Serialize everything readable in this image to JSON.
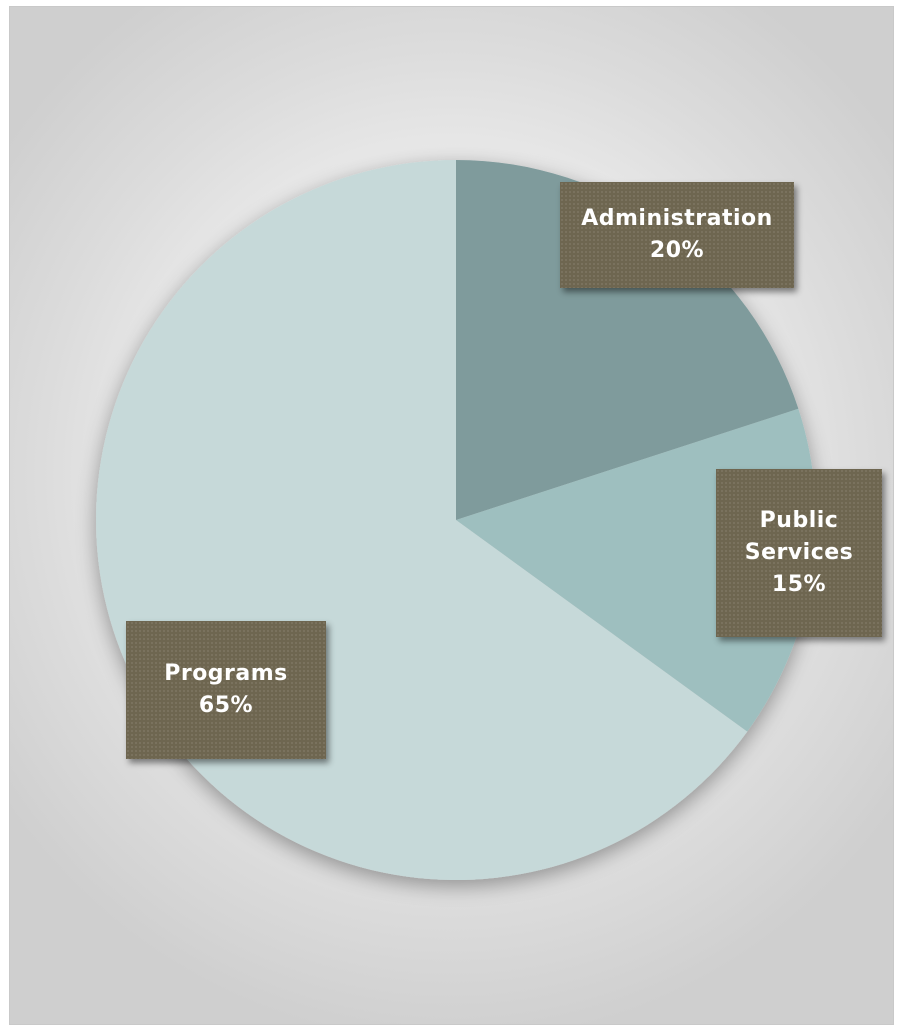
{
  "chart_data": {
    "type": "pie",
    "categories": [
      "Administration",
      "Public Services",
      "Programs"
    ],
    "values": [
      20,
      15,
      65
    ],
    "labels": [
      {
        "name_lines": [
          "Administration"
        ],
        "value_text": "20%"
      },
      {
        "name_lines": [
          "Public",
          "Services"
        ],
        "value_text": "15%"
      },
      {
        "name_lines": [
          "Programs"
        ],
        "value_text": "65%"
      }
    ],
    "start_angle_deg": 0,
    "direction": "clockwise",
    "colors": [
      "#7f9b9c",
      "#9ebfbf",
      "#c6d9d9"
    ],
    "label_box_color": "#6e6650",
    "legend": "none"
  }
}
